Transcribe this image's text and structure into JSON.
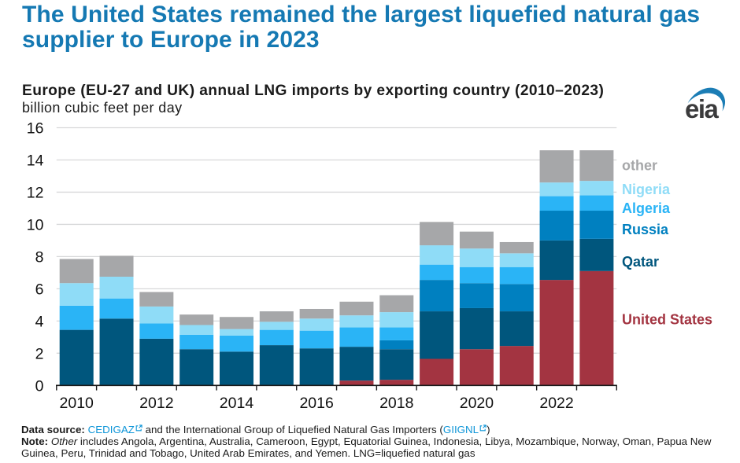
{
  "header": {
    "title": "The United States remained the largest liquefied natural gas supplier to Europe in 2023",
    "subtitle": "Europe (EU-27 and UK) annual LNG imports by exporting country (2010–2023)",
    "units": "billion cubic feet per day",
    "logo_text": "eia",
    "logo_accent_color": "#1b7db5"
  },
  "chart_data": {
    "type": "bar",
    "stacked": true,
    "x": [
      2010,
      2011,
      2012,
      2013,
      2014,
      2015,
      2016,
      2017,
      2018,
      2019,
      2020,
      2021,
      2022,
      2023
    ],
    "series": [
      {
        "name": "United States",
        "color": "#a33441",
        "values": [
          0,
          0,
          0,
          0,
          0,
          0,
          0,
          0.3,
          0.35,
          1.65,
          2.25,
          2.45,
          6.55,
          7.1
        ]
      },
      {
        "name": "Qatar",
        "color": "#00567d",
        "values": [
          3.45,
          4.15,
          2.9,
          2.25,
          2.1,
          2.5,
          2.3,
          2.1,
          1.9,
          2.95,
          2.55,
          2.15,
          2.45,
          2.0
        ]
      },
      {
        "name": "Russia",
        "color": "#0080c0",
        "values": [
          0,
          0,
          0,
          0,
          0,
          0,
          0,
          0,
          0.55,
          1.95,
          1.55,
          1.7,
          1.85,
          1.75
        ]
      },
      {
        "name": "Algeria",
        "color": "#2ab4f6",
        "values": [
          1.5,
          1.25,
          0.95,
          0.9,
          1.0,
          0.95,
          1.1,
          1.2,
          0.8,
          0.95,
          1.0,
          1.05,
          0.9,
          0.95
        ]
      },
      {
        "name": "Nigeria",
        "color": "#8fdcf7",
        "values": [
          1.4,
          1.35,
          1.05,
          0.6,
          0.4,
          0.5,
          0.75,
          0.75,
          0.95,
          1.2,
          1.15,
          0.85,
          0.85,
          0.9
        ]
      },
      {
        "name": "other",
        "color": "#a6a7a9",
        "values": [
          1.5,
          1.3,
          0.9,
          0.65,
          0.75,
          0.65,
          0.6,
          0.85,
          1.05,
          1.45,
          1.05,
          0.7,
          2.0,
          1.9
        ]
      }
    ],
    "ylim": [
      0,
      16
    ],
    "yticks": [
      "0",
      "2",
      "4",
      "6",
      "8",
      "10",
      "12",
      "14",
      "16"
    ],
    "xtick_labels": [
      "2010",
      "2012",
      "2014",
      "2016",
      "2018",
      "2020",
      "2022"
    ],
    "grid": true,
    "legend_position": "right",
    "legend_labels": [
      "other",
      "Nigeria",
      "Algeria",
      "Russia",
      "Qatar",
      "United States"
    ]
  },
  "footer": {
    "datasource_label": "Data source:",
    "link1_text": "CEDIGAZ",
    "middle_text": " and the International Group of Liquefied Natural Gas Importers (",
    "link2_text": "GIIGNL",
    "suffix_text": ")",
    "note_label": "Note:",
    "note_italic": "Other",
    "note_text": " includes Angola, Argentina, Australia, Cameroon, Egypt, Equatorial Guinea, Indonesia, Libya, Mozambique, Norway, Oman, Papua New Guinea, Peru, Trinidad and Tobago, United Arab Emirates, and Yemen. LNG=liquefied natural gas"
  }
}
